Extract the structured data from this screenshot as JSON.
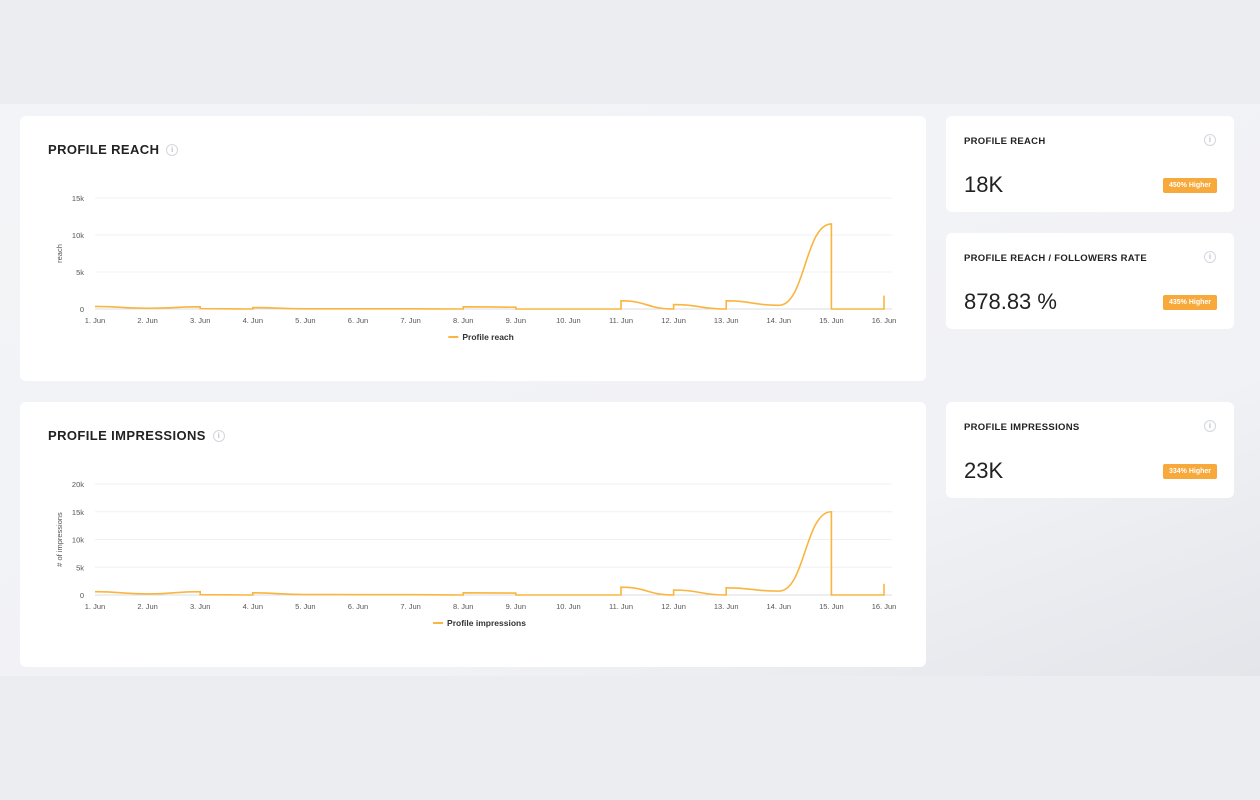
{
  "colors": {
    "accent": "#f9b53f",
    "badge": "#f7a93b"
  },
  "charts": [
    {
      "title": "PROFILE REACH",
      "chart_data": {
        "type": "line",
        "categories": [
          "1. Jun",
          "2. Jun",
          "3. Jun",
          "4. Jun",
          "5. Jun",
          "6. Jun",
          "7. Jun",
          "8. Jun",
          "9. Jun",
          "10. Jun",
          "11. Jun",
          "12. Jun",
          "13. Jun",
          "14. Jun",
          "15. Jun",
          "16. Jun"
        ],
        "ylabel": "reach",
        "y_ticks": [
          "0",
          "5k",
          "10k",
          "15k"
        ],
        "ylim": [
          0,
          15000
        ],
        "grid": true,
        "legend": "bottom",
        "series": [
          {
            "name": "Profile reach",
            "points": [
              [
                0,
                350
              ],
              [
                1,
                100
              ],
              [
                2,
                300
              ],
              [
                2,
                50
              ],
              [
                3,
                0
              ],
              [
                3,
                200
              ],
              [
                4,
                30
              ],
              [
                5,
                20
              ],
              [
                6,
                20
              ],
              [
                7,
                0
              ],
              [
                7,
                300
              ],
              [
                8,
                250
              ],
              [
                8,
                0
              ],
              [
                9,
                0
              ],
              [
                10,
                0
              ],
              [
                10,
                1100
              ],
              [
                11,
                0
              ],
              [
                11,
                600
              ],
              [
                12,
                0
              ],
              [
                12,
                1100
              ],
              [
                13,
                500
              ],
              [
                14,
                11500
              ],
              [
                14,
                0
              ],
              [
                15,
                0
              ],
              [
                15,
                1800
              ]
            ]
          }
        ]
      }
    },
    {
      "title": "PROFILE IMPRESSIONS",
      "chart_data": {
        "type": "line",
        "categories": [
          "1. Jun",
          "2. Jun",
          "3. Jun",
          "4. Jun",
          "5. Jun",
          "6. Jun",
          "7. Jun",
          "8. Jun",
          "9. Jun",
          "10. Jun",
          "11. Jun",
          "12. Jun",
          "13. Jun",
          "14. Jun",
          "15. Jun",
          "16. Jun"
        ],
        "ylabel": "# of impressions",
        "y_ticks": [
          "0",
          "5k",
          "10k",
          "15k",
          "20k"
        ],
        "ylim": [
          0,
          20000
        ],
        "grid": true,
        "legend": "bottom",
        "series": [
          {
            "name": "Profile impressions",
            "points": [
              [
                0,
                600
              ],
              [
                1,
                200
              ],
              [
                2,
                600
              ],
              [
                2,
                50
              ],
              [
                3,
                0
              ],
              [
                3,
                400
              ],
              [
                4,
                80
              ],
              [
                5,
                60
              ],
              [
                6,
                60
              ],
              [
                7,
                0
              ],
              [
                7,
                400
              ],
              [
                8,
                350
              ],
              [
                8,
                0
              ],
              [
                9,
                0
              ],
              [
                10,
                0
              ],
              [
                10,
                1400
              ],
              [
                11,
                0
              ],
              [
                11,
                900
              ],
              [
                12,
                0
              ],
              [
                12,
                1300
              ],
              [
                13,
                700
              ],
              [
                14,
                15000
              ],
              [
                14,
                0
              ],
              [
                15,
                0
              ],
              [
                15,
                2000
              ]
            ]
          }
        ]
      }
    }
  ],
  "stats": [
    {
      "label": "PROFILE REACH",
      "value": "18K",
      "badge": "450% Higher"
    },
    {
      "label": "PROFILE REACH / FOLLOWERS RATE",
      "value": "878.83 %",
      "badge": "435% Higher"
    },
    {
      "label": "PROFILE IMPRESSIONS",
      "value": "23K",
      "badge": "334% Higher"
    }
  ]
}
